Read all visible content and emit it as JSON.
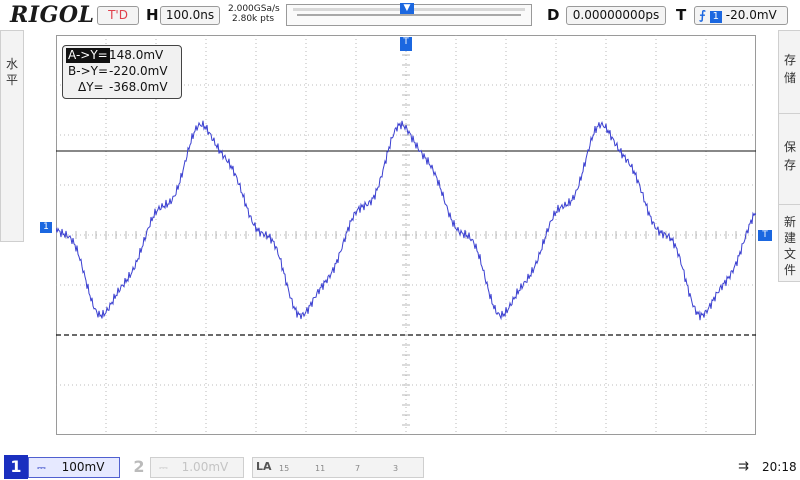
{
  "header": {
    "brand": "RIGOL",
    "run_status": "T'D",
    "horizontal_label": "H",
    "timebase": "100.0ns",
    "sample_rate": "2.000GSa/s",
    "memory_depth": "2.80k pts",
    "delay_label": "D",
    "delay": "0.00000000ps",
    "trigger_label": "T",
    "trigger_source": "1",
    "trigger_level": "-20.0mV"
  },
  "left_menu": {
    "label_line1": "水",
    "label_line2": "平"
  },
  "right_menu": [
    {
      "line1": "存",
      "line2": "储"
    },
    {
      "line1": "保",
      "line2": "存"
    },
    {
      "line1": "新",
      "line2": "建",
      "line3": "文",
      "line4": "件"
    }
  ],
  "cursor_readout": {
    "a_label": "A->Y=",
    "a_value": "148.0mV",
    "b_label": "B->Y=",
    "b_value": "-220.0mV",
    "delta_label": "ΔY=",
    "delta_value": "-368.0mV"
  },
  "markers": {
    "channel1": "1",
    "trigger_pos": "T",
    "trigger_level": "T"
  },
  "footer": {
    "ch1_number": "1",
    "ch1_scale": "100mV",
    "ch2_number": "2",
    "ch2_scale": "1.00mV",
    "la_label": "LA",
    "la_ticks": [
      "15",
      "11",
      "7",
      "3"
    ],
    "time": "20:18"
  },
  "colors": {
    "trace": "#3a3fd0",
    "accent": "#1b67e0",
    "grid": "#b0b0b0"
  }
}
